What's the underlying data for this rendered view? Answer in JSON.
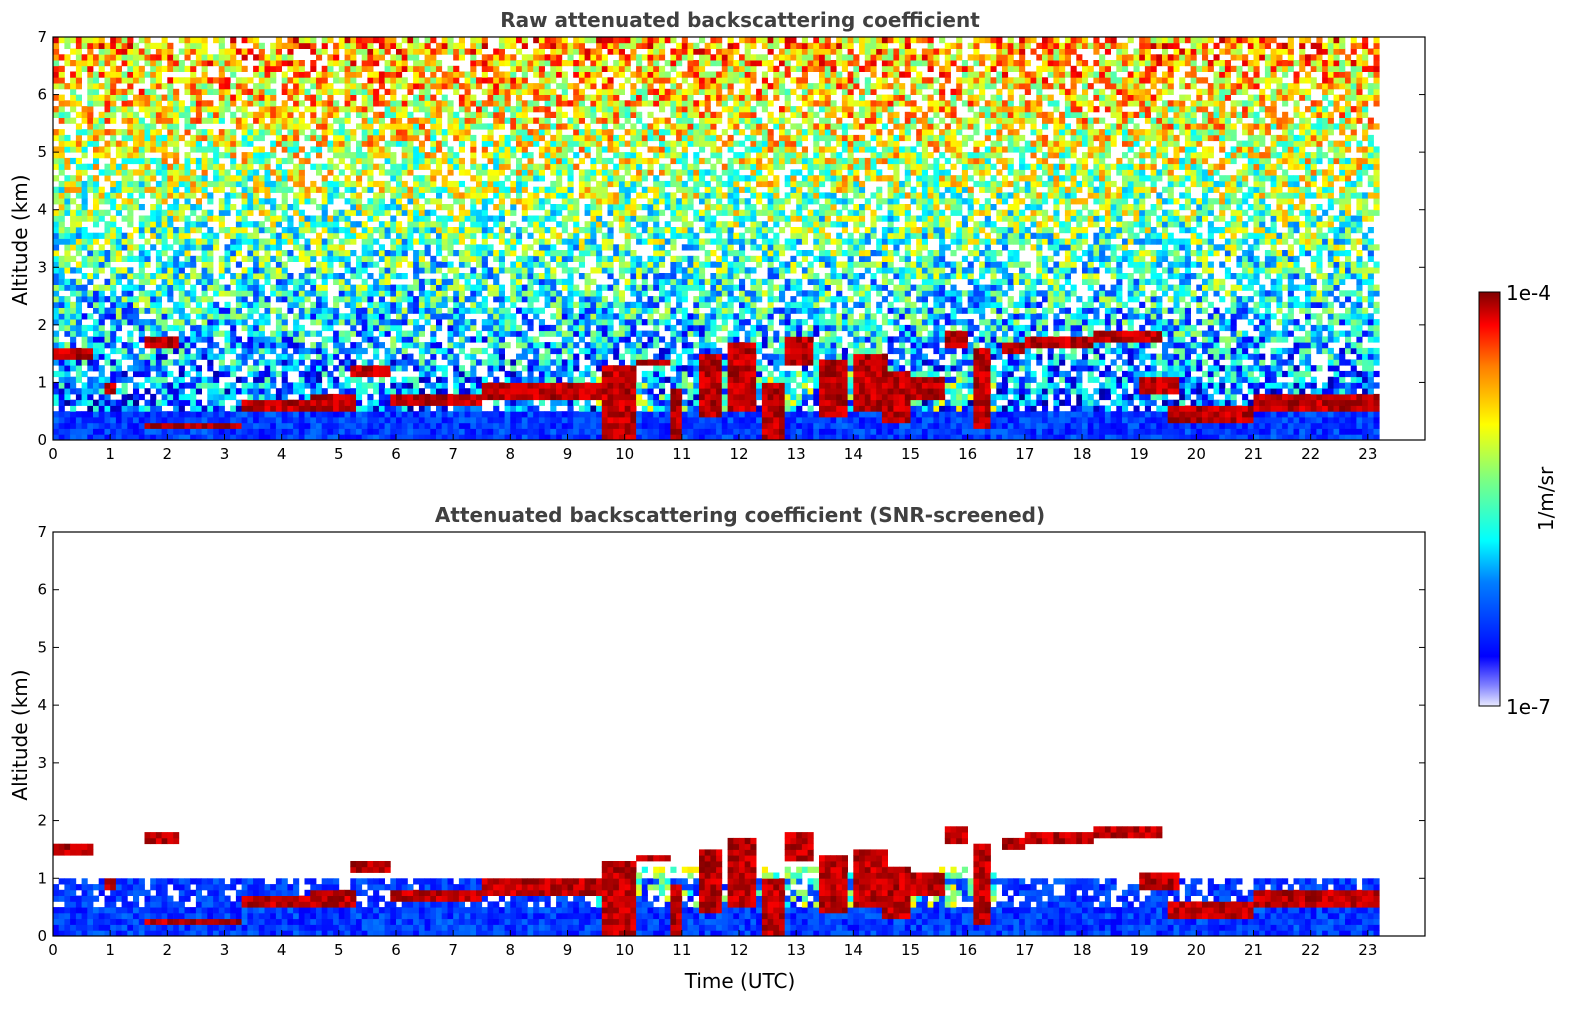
{
  "chart_data": [
    {
      "type": "heatmap",
      "title": "Raw attenuated backscattering coefficient",
      "xlabel": "",
      "ylabel": "Altitude (km)",
      "xlim": [
        0,
        24
      ],
      "ylim": [
        0,
        7
      ],
      "x_ticks": [
        0,
        1,
        2,
        3,
        4,
        5,
        6,
        7,
        8,
        9,
        10,
        11,
        12,
        13,
        14,
        15,
        16,
        17,
        18,
        19,
        20,
        21,
        22,
        23
      ],
      "y_ticks": [
        0,
        1,
        2,
        3,
        4,
        5,
        6,
        7
      ],
      "data_time_range": [
        0,
        23.2
      ],
      "color_scale": "log",
      "grid": false
    },
    {
      "type": "heatmap",
      "title": "Attenuated backscattering coefficient (SNR-screened)",
      "xlabel": "Time (UTC)",
      "ylabel": "Altitude (km)",
      "xlim": [
        0,
        24
      ],
      "ylim": [
        0,
        7
      ],
      "x_ticks": [
        0,
        1,
        2,
        3,
        4,
        5,
        6,
        7,
        8,
        9,
        10,
        11,
        12,
        13,
        14,
        15,
        16,
        17,
        18,
        19,
        20,
        21,
        22,
        23
      ],
      "y_ticks": [
        0,
        1,
        2,
        3,
        4,
        5,
        6,
        7
      ],
      "data_time_range": [
        0,
        23.2
      ],
      "color_scale": "log",
      "grid": false
    }
  ],
  "colorbar": {
    "label": "1/m/sr",
    "max_label": "1e-4",
    "min_label": "1e-7",
    "colormap": "jet",
    "colors": [
      "#00007f",
      "#0000ff",
      "#007fff",
      "#00ffff",
      "#7fff7f",
      "#ffff00",
      "#ff7f00",
      "#ff0000",
      "#7f0000"
    ]
  }
}
